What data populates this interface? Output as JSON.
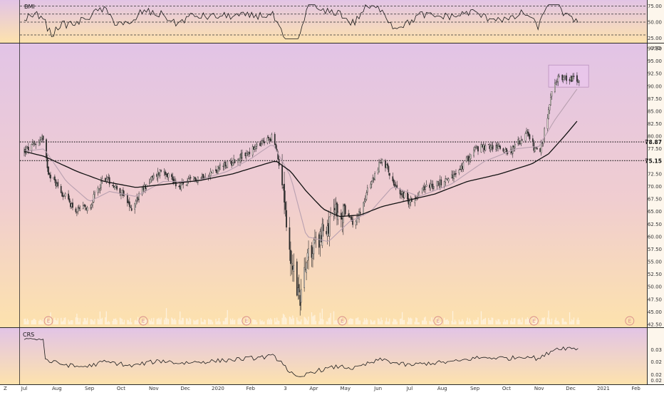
{
  "chart_data": [
    {
      "type": "line",
      "panel": "indicator-top",
      "label": "BMI",
      "ylim": [
        20,
        80
      ],
      "y_ticks": [
        "75.00",
        "50.00",
        "25.00"
      ],
      "reference_lines": [
        75,
        62.5,
        50,
        30
      ],
      "line_color": "#1a1a1a"
    },
    {
      "type": "candlestick",
      "panel": "price",
      "currency": "USD",
      "ylim": [
        42.5,
        97.5
      ],
      "y_ticks": [
        "97.50",
        "95.00",
        "92.50",
        "90.00",
        "87.50",
        "85.00",
        "82.50",
        "80.00",
        "77.50",
        "75.00",
        "72.50",
        "70.00",
        "67.50",
        "65.00",
        "62.50",
        "60.00",
        "57.50",
        "55.00",
        "52.50",
        "50.00",
        "47.50",
        "45.00",
        "42.50"
      ],
      "price_labels": [
        {
          "value": 78.87,
          "text": "78.87"
        },
        {
          "value": 75.15,
          "text": "75.15"
        }
      ],
      "horizontal_levels": [
        78.87,
        75.15
      ],
      "highlight_zone": {
        "from": "2020-11-10",
        "to": "2020-12-18",
        "low": 89.8,
        "high": 94.2
      },
      "anchors": [
        [
          "2019-07-01",
          77.0
        ],
        [
          "2019-07-12",
          78.5
        ],
        [
          "2019-07-18",
          79.8
        ],
        [
          "2019-07-24",
          73.0
        ],
        [
          "2019-08-05",
          69.0
        ],
        [
          "2019-08-20",
          65.0
        ],
        [
          "2019-09-01",
          66.0
        ],
        [
          "2019-09-15",
          72.0
        ],
        [
          "2019-10-01",
          69.0
        ],
        [
          "2019-10-10",
          65.5
        ],
        [
          "2019-10-25",
          70.5
        ],
        [
          "2019-11-10",
          73.5
        ],
        [
          "2019-11-25",
          70.0
        ],
        [
          "2019-12-10",
          71.5
        ],
        [
          "2019-12-28",
          73.0
        ],
        [
          "2020-01-15",
          75.0
        ],
        [
          "2020-02-01",
          77.0
        ],
        [
          "2020-02-15",
          79.0
        ],
        [
          "2020-02-22",
          80.0
        ],
        [
          "2020-03-02",
          72.0
        ],
        [
          "2020-03-09",
          57.0
        ],
        [
          "2020-03-18",
          47.0
        ],
        [
          "2020-03-28",
          57.0
        ],
        [
          "2020-04-10",
          61.0
        ],
        [
          "2020-04-25",
          65.5
        ],
        [
          "2020-05-10",
          62.5
        ],
        [
          "2020-05-22",
          69.0
        ],
        [
          "2020-06-05",
          75.5
        ],
        [
          "2020-06-18",
          70.0
        ],
        [
          "2020-06-30",
          67.0
        ],
        [
          "2020-07-15",
          69.5
        ],
        [
          "2020-08-01",
          71.0
        ],
        [
          "2020-08-15",
          72.5
        ],
        [
          "2020-09-01",
          77.5
        ],
        [
          "2020-09-20",
          78.0
        ],
        [
          "2020-10-05",
          77.0
        ],
        [
          "2020-10-20",
          80.5
        ],
        [
          "2020-11-01",
          76.0
        ],
        [
          "2020-11-09",
          84.0
        ],
        [
          "2020-11-13",
          88.5
        ],
        [
          "2020-11-20",
          92.0
        ],
        [
          "2020-12-01",
          91.5
        ],
        [
          "2020-12-09",
          91.0
        ]
      ],
      "ma_short_anchors": [
        [
          "2019-07-01",
          77.0
        ],
        [
          "2019-07-20",
          77.5
        ],
        [
          "2019-08-10",
          71.0
        ],
        [
          "2019-09-01",
          67.0
        ],
        [
          "2019-09-20",
          69.0
        ],
        [
          "2019-10-15",
          68.0
        ],
        [
          "2019-11-10",
          71.0
        ],
        [
          "2019-12-10",
          71.0
        ],
        [
          "2020-01-10",
          73.0
        ],
        [
          "2020-02-01",
          75.5
        ],
        [
          "2020-02-22",
          78.5
        ],
        [
          "2020-03-10",
          72.0
        ],
        [
          "2020-03-25",
          60.0
        ],
        [
          "2020-04-15",
          59.0
        ],
        [
          "2020-05-05",
          63.0
        ],
        [
          "2020-05-25",
          65.0
        ],
        [
          "2020-06-15",
          70.0
        ],
        [
          "2020-07-10",
          68.0
        ],
        [
          "2020-08-10",
          70.5
        ],
        [
          "2020-09-10",
          75.0
        ],
        [
          "2020-10-10",
          77.5
        ],
        [
          "2020-11-01",
          78.0
        ],
        [
          "2020-11-15",
          83.0
        ],
        [
          "2020-12-09",
          90.0
        ]
      ],
      "ma_long_anchors": [
        [
          "2019-07-01",
          77.0
        ],
        [
          "2019-07-20",
          76.0
        ],
        [
          "2019-08-20",
          73.0
        ],
        [
          "2019-09-15",
          71.0
        ],
        [
          "2019-10-15",
          69.8
        ],
        [
          "2019-11-15",
          70.5
        ],
        [
          "2019-12-15",
          71.2
        ],
        [
          "2020-01-15",
          72.5
        ],
        [
          "2020-02-15",
          74.5
        ],
        [
          "2020-02-25",
          75.1
        ],
        [
          "2020-03-10",
          73.0
        ],
        [
          "2020-03-25",
          69.0
        ],
        [
          "2020-04-10",
          65.5
        ],
        [
          "2020-04-25",
          64.0
        ],
        [
          "2020-05-15",
          64.3
        ],
        [
          "2020-06-05",
          66.0
        ],
        [
          "2020-06-25",
          67.0
        ],
        [
          "2020-07-25",
          68.5
        ],
        [
          "2020-08-25",
          71.0
        ],
        [
          "2020-09-25",
          72.5
        ],
        [
          "2020-10-25",
          74.5
        ],
        [
          "2020-11-10",
          76.5
        ],
        [
          "2020-11-25",
          80.0
        ],
        [
          "2020-12-09",
          83.5
        ]
      ],
      "event_badges": [
        {
          "date": "2019-07-24",
          "text": "E"
        },
        {
          "date": "2019-10-22",
          "text": "E"
        },
        {
          "date": "2020-01-28",
          "text": "E"
        },
        {
          "date": "2020-04-28",
          "text": "E"
        },
        {
          "date": "2020-07-28",
          "text": "E"
        },
        {
          "date": "2020-10-27",
          "text": "E"
        },
        {
          "date": "2021-01-26",
          "text": "E"
        }
      ]
    },
    {
      "type": "line",
      "panel": "indicator-bottom",
      "label": "CRS",
      "ylim": [
        0.01,
        0.035
      ],
      "y_ticks": [
        "0.03",
        "0.02",
        "0.02",
        "0.02"
      ],
      "line_color": "#1a1a1a"
    }
  ],
  "x_axis": {
    "start": "2019-07-01",
    "end": "2021-02-10",
    "ticks": [
      {
        "date": "2019-07-01",
        "label": "Jul"
      },
      {
        "date": "2019-08-01",
        "label": "Aug"
      },
      {
        "date": "2019-09-01",
        "label": "Sep"
      },
      {
        "date": "2019-10-01",
        "label": "Oct"
      },
      {
        "date": "2019-11-01",
        "label": "Nov"
      },
      {
        "date": "2019-12-01",
        "label": "Dec"
      },
      {
        "date": "2020-01-01",
        "label": "2020"
      },
      {
        "date": "2020-02-01",
        "label": "Feb"
      },
      {
        "date": "2020-03-05",
        "label": "3"
      },
      {
        "date": "2020-04-01",
        "label": "Apr"
      },
      {
        "date": "2020-05-01",
        "label": "May"
      },
      {
        "date": "2020-06-01",
        "label": "Jun"
      },
      {
        "date": "2020-07-01",
        "label": "Jul"
      },
      {
        "date": "2020-08-01",
        "label": "Aug"
      },
      {
        "date": "2020-09-01",
        "label": "Sep"
      },
      {
        "date": "2020-10-01",
        "label": "Oct"
      },
      {
        "date": "2020-11-01",
        "label": "Nov"
      },
      {
        "date": "2020-12-01",
        "label": "Dec"
      },
      {
        "date": "2021-01-01",
        "label": "2021"
      },
      {
        "date": "2021-02-01",
        "label": "Feb"
      }
    ],
    "corner_label": "Z"
  },
  "theme": {
    "gradient_top": "#e2c4e6",
    "gradient_bottom": "#fde2ad",
    "frame": "#2a2a2a",
    "candle": "#2b2b2b",
    "ma_short": "#b8a0b0",
    "ma_long": "#111111",
    "badge": "#d88a8a"
  }
}
